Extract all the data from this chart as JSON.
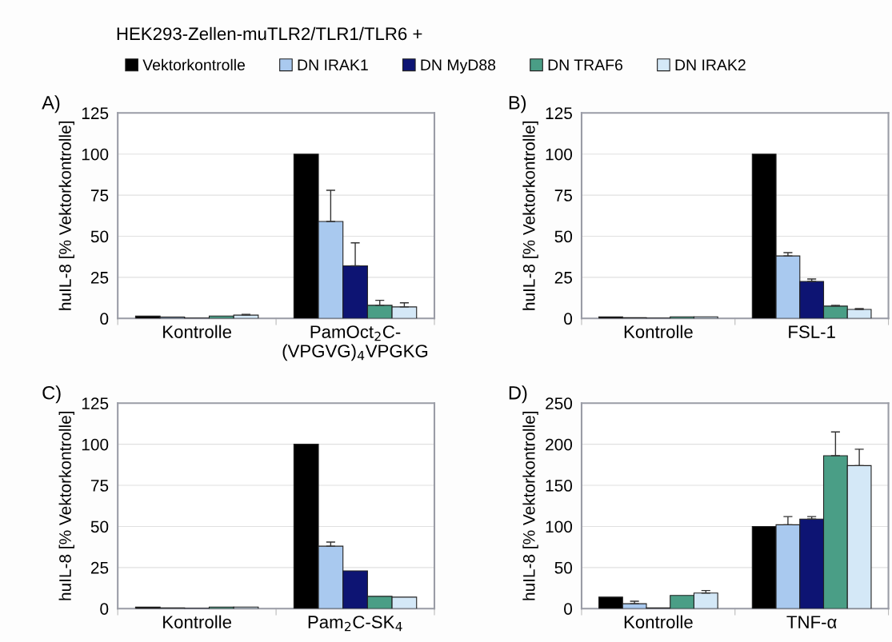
{
  "chart_data": [
    {
      "type": "bar",
      "title": "A)",
      "annotations": [
        "HEK293-Zellen-muTLR2/TLR1/TLR6 +"
      ],
      "ylabel": "huIL-8 [% Vektorkontrolle]",
      "categories": [
        "Kontrolle",
        "PamOct$_{2}$C-\n(VPGVG)$_{4}$VPGKG"
      ],
      "ylim": [
        0,
        125
      ],
      "yticks": [
        0,
        25,
        50,
        75,
        100,
        125
      ],
      "grid": "y",
      "legend": "top",
      "series": [
        {
          "name": "Vektorkontrolle",
          "color": "#000000",
          "values": [
            1.5,
            100
          ],
          "errors": [
            null,
            null
          ]
        },
        {
          "name": "DN IRAK1",
          "color": "#a9c9ef",
          "values": [
            0.8,
            59
          ],
          "errors": [
            null,
            [
              59,
              78
            ]
          ]
        },
        {
          "name": "DN MyD88",
          "color": "#0d1473",
          "values": [
            0.2,
            32
          ],
          "errors": [
            null,
            [
              32,
              46
            ]
          ]
        },
        {
          "name": "DN TRAF6",
          "color": "#4a9e86",
          "values": [
            1.5,
            8
          ],
          "errors": [
            null,
            [
              8,
              11
            ]
          ]
        },
        {
          "name": "DN IRAK2",
          "color": "#d4e8f7",
          "values": [
            2,
            7
          ],
          "errors": [
            [
              2,
              2.5
            ],
            [
              7,
              9.5
            ]
          ]
        }
      ]
    },
    {
      "type": "bar",
      "title": "B)",
      "ylabel": "huIL-8 [% Vektorkontrolle]",
      "categories": [
        "Kontrolle",
        "FSL-1"
      ],
      "ylim": [
        0,
        125
      ],
      "yticks": [
        0,
        25,
        50,
        75,
        100,
        125
      ],
      "grid": "y",
      "series": [
        {
          "color": "#000000",
          "values": [
            1,
            100
          ],
          "errors": [
            null,
            null
          ]
        },
        {
          "color": "#a9c9ef",
          "values": [
            0.5,
            38
          ],
          "errors": [
            null,
            [
              38,
              40
            ]
          ]
        },
        {
          "color": "#0d1473",
          "values": [
            0.2,
            22.5
          ],
          "errors": [
            null,
            [
              22.5,
              24
            ]
          ]
        },
        {
          "color": "#4a9e86",
          "values": [
            1,
            7.5
          ],
          "errors": [
            null,
            [
              7.5,
              8
            ]
          ]
        },
        {
          "color": "#d4e8f7",
          "values": [
            1,
            5.5
          ],
          "errors": [
            null,
            [
              5.5,
              6
            ]
          ]
        }
      ]
    },
    {
      "type": "bar",
      "title": "C)",
      "ylabel": "huIL-8 [% Vektorkontrolle]",
      "categories": [
        "Kontrolle",
        "Pam$_{2}$C-SK$_{4}$"
      ],
      "ylim": [
        0,
        125
      ],
      "yticks": [
        0,
        25,
        50,
        75,
        100,
        125
      ],
      "grid": "y",
      "series": [
        {
          "color": "#000000",
          "values": [
            1,
            100
          ],
          "errors": [
            null,
            null
          ]
        },
        {
          "color": "#a9c9ef",
          "values": [
            0.5,
            38
          ],
          "errors": [
            null,
            [
              38,
              40.5
            ]
          ]
        },
        {
          "color": "#0d1473",
          "values": [
            0.2,
            23
          ],
          "errors": [
            null,
            null
          ]
        },
        {
          "color": "#4a9e86",
          "values": [
            1,
            7.5
          ],
          "errors": [
            null,
            null
          ]
        },
        {
          "color": "#d4e8f7",
          "values": [
            1,
            7
          ],
          "errors": [
            null,
            null
          ]
        }
      ]
    },
    {
      "type": "bar",
      "title": "D)",
      "ylabel": "huIL-8 [% Vektorkontrolle]",
      "categories": [
        "Kontrolle",
        "TNF-α"
      ],
      "ylim": [
        0,
        250
      ],
      "yticks": [
        0,
        50,
        100,
        150,
        200,
        250
      ],
      "grid": "y",
      "series": [
        {
          "color": "#000000",
          "values": [
            14,
            100
          ],
          "errors": [
            null,
            null
          ]
        },
        {
          "color": "#a9c9ef",
          "values": [
            6,
            102
          ],
          "errors": [
            [
              6,
              9
            ],
            [
              102,
              112
            ]
          ]
        },
        {
          "color": "#0d1473",
          "values": [
            1,
            109
          ],
          "errors": [
            null,
            [
              109,
              112
            ]
          ]
        },
        {
          "color": "#4a9e86",
          "values": [
            16,
            186
          ],
          "errors": [
            null,
            [
              186,
              215
            ]
          ]
        },
        {
          "color": "#d4e8f7",
          "values": [
            19,
            174
          ],
          "errors": [
            [
              19,
              22
            ],
            [
              174,
              194
            ]
          ]
        }
      ]
    }
  ]
}
